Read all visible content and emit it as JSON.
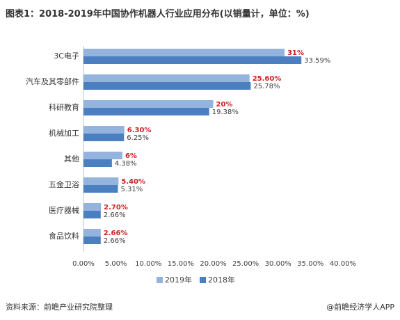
{
  "title": "图表1：2018-2019年中国协作机器人行业应用分布(以销量计，单位：%)",
  "footer": {
    "source": "资料来源：前瞻产业研究院整理",
    "brand": "@前瞻经济学人APP"
  },
  "colors": {
    "series_2019": "#94b4de",
    "series_2018": "#4c7fc0",
    "label_2019": "#cc2222",
    "label_2018": "#404040"
  },
  "chart_data": {
    "type": "bar",
    "orientation": "horizontal",
    "categories": [
      "3C电子",
      "汽车及其零部件",
      "科研教育",
      "机械加工",
      "其他",
      "五金卫浴",
      "医疗器械",
      "食品饮料"
    ],
    "series": [
      {
        "name": "2019年",
        "values": [
          31,
          25.6,
          20,
          6.3,
          6,
          5.4,
          2.7,
          2.66
        ],
        "labels": [
          "31%",
          "25.60%",
          "20%",
          "6.30%",
          "6%",
          "5.40%",
          "2.70%",
          "2.66%"
        ]
      },
      {
        "name": "2018年",
        "values": [
          33.59,
          25.78,
          19.38,
          6.25,
          4.38,
          5.31,
          2.66,
          2.66
        ],
        "labels": [
          "33.59%",
          "25.78%",
          "19.38%",
          "6.25%",
          "4.38%",
          "5.31%",
          "2.66%",
          "2.66%"
        ]
      }
    ],
    "xlim": [
      0,
      40
    ],
    "xticks": [
      "0.00%",
      "5.00%",
      "10.00%",
      "15.00%",
      "20.00%",
      "25.00%",
      "30.00%",
      "35.00%",
      "40.00%"
    ],
    "grid": false,
    "legend": "bottom"
  }
}
